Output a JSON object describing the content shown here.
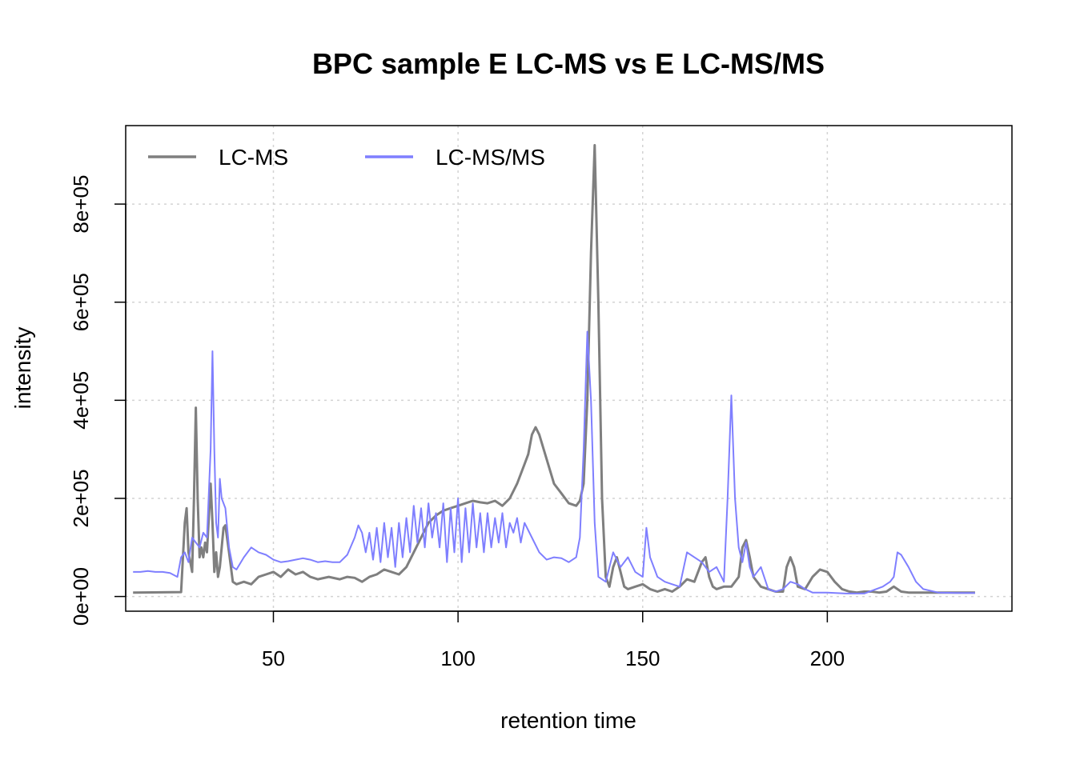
{
  "chart_data": {
    "type": "line",
    "title": "BPC sample E LC-MS vs E LC-MS/MS",
    "xlabel": "retention time",
    "ylabel": "intensity",
    "xlim": [
      10,
      250
    ],
    "ylim": [
      -30000,
      960000
    ],
    "x_ticks": [
      50,
      100,
      150,
      200
    ],
    "y_ticks": [
      0,
      200000,
      400000,
      600000,
      800000
    ],
    "x_tick_labels": [
      "50",
      "100",
      "150",
      "200"
    ],
    "y_tick_labels": [
      "0e+00",
      "2e+05",
      "4e+05",
      "6e+05",
      "8e+05"
    ],
    "grid": true,
    "legend_position": "top-left",
    "series": [
      {
        "name": "LC-MS",
        "color": "#7f7f7f",
        "points": [
          [
            12,
            8000
          ],
          [
            25,
            9000
          ],
          [
            26,
            150000
          ],
          [
            26.5,
            180000
          ],
          [
            27,
            90000
          ],
          [
            28,
            50000
          ],
          [
            28.5,
            200000
          ],
          [
            29,
            385000
          ],
          [
            29.5,
            200000
          ],
          [
            30,
            80000
          ],
          [
            30.5,
            100000
          ],
          [
            31,
            80000
          ],
          [
            31.5,
            110000
          ],
          [
            32,
            90000
          ],
          [
            32.5,
            160000
          ],
          [
            33,
            230000
          ],
          [
            33.5,
            150000
          ],
          [
            34,
            50000
          ],
          [
            34.5,
            90000
          ],
          [
            35,
            40000
          ],
          [
            35.5,
            60000
          ],
          [
            36,
            100000
          ],
          [
            36.5,
            140000
          ],
          [
            37,
            145000
          ],
          [
            38,
            90000
          ],
          [
            39,
            30000
          ],
          [
            40,
            25000
          ],
          [
            42,
            30000
          ],
          [
            44,
            25000
          ],
          [
            46,
            40000
          ],
          [
            48,
            45000
          ],
          [
            50,
            50000
          ],
          [
            52,
            40000
          ],
          [
            54,
            55000
          ],
          [
            56,
            45000
          ],
          [
            58,
            50000
          ],
          [
            60,
            40000
          ],
          [
            62,
            35000
          ],
          [
            65,
            40000
          ],
          [
            68,
            35000
          ],
          [
            70,
            40000
          ],
          [
            72,
            38000
          ],
          [
            74,
            30000
          ],
          [
            76,
            40000
          ],
          [
            78,
            45000
          ],
          [
            80,
            55000
          ],
          [
            82,
            50000
          ],
          [
            84,
            45000
          ],
          [
            86,
            60000
          ],
          [
            88,
            90000
          ],
          [
            90,
            120000
          ],
          [
            92,
            150000
          ],
          [
            94,
            165000
          ],
          [
            96,
            175000
          ],
          [
            98,
            180000
          ],
          [
            100,
            185000
          ],
          [
            102,
            190000
          ],
          [
            104,
            195000
          ],
          [
            106,
            192000
          ],
          [
            108,
            190000
          ],
          [
            110,
            195000
          ],
          [
            112,
            185000
          ],
          [
            114,
            200000
          ],
          [
            116,
            230000
          ],
          [
            118,
            270000
          ],
          [
            119,
            290000
          ],
          [
            120,
            330000
          ],
          [
            121,
            345000
          ],
          [
            122,
            330000
          ],
          [
            124,
            280000
          ],
          [
            126,
            230000
          ],
          [
            128,
            210000
          ],
          [
            130,
            190000
          ],
          [
            132,
            185000
          ],
          [
            133,
            195000
          ],
          [
            134,
            230000
          ],
          [
            135,
            400000
          ],
          [
            136,
            700000
          ],
          [
            137,
            920000
          ],
          [
            138,
            600000
          ],
          [
            139,
            200000
          ],
          [
            140,
            40000
          ],
          [
            141,
            20000
          ],
          [
            142,
            60000
          ],
          [
            143,
            80000
          ],
          [
            144,
            50000
          ],
          [
            145,
            20000
          ],
          [
            146,
            15000
          ],
          [
            148,
            20000
          ],
          [
            150,
            25000
          ],
          [
            152,
            15000
          ],
          [
            154,
            10000
          ],
          [
            156,
            15000
          ],
          [
            158,
            10000
          ],
          [
            160,
            20000
          ],
          [
            162,
            35000
          ],
          [
            164,
            30000
          ],
          [
            166,
            70000
          ],
          [
            167,
            80000
          ],
          [
            168,
            40000
          ],
          [
            169,
            20000
          ],
          [
            170,
            15000
          ],
          [
            172,
            20000
          ],
          [
            174,
            20000
          ],
          [
            176,
            40000
          ],
          [
            177,
            100000
          ],
          [
            178,
            115000
          ],
          [
            179,
            80000
          ],
          [
            180,
            40000
          ],
          [
            182,
            20000
          ],
          [
            184,
            15000
          ],
          [
            186,
            10000
          ],
          [
            188,
            10000
          ],
          [
            189,
            60000
          ],
          [
            190,
            80000
          ],
          [
            191,
            60000
          ],
          [
            192,
            20000
          ],
          [
            194,
            15000
          ],
          [
            196,
            40000
          ],
          [
            198,
            55000
          ],
          [
            200,
            50000
          ],
          [
            202,
            30000
          ],
          [
            204,
            15000
          ],
          [
            206,
            10000
          ],
          [
            208,
            8000
          ],
          [
            210,
            10000
          ],
          [
            212,
            10000
          ],
          [
            214,
            8000
          ],
          [
            216,
            10000
          ],
          [
            218,
            20000
          ],
          [
            220,
            10000
          ],
          [
            222,
            8000
          ],
          [
            225,
            8000
          ],
          [
            230,
            8000
          ],
          [
            235,
            8000
          ],
          [
            240,
            8000
          ]
        ]
      },
      {
        "name": "LC-MS/MS",
        "color": "#7f7fff",
        "points": [
          [
            12,
            50000
          ],
          [
            14,
            50000
          ],
          [
            16,
            52000
          ],
          [
            18,
            50000
          ],
          [
            20,
            50000
          ],
          [
            22,
            48000
          ],
          [
            24,
            40000
          ],
          [
            25,
            80000
          ],
          [
            26,
            90000
          ],
          [
            27,
            70000
          ],
          [
            28,
            120000
          ],
          [
            29,
            110000
          ],
          [
            30,
            100000
          ],
          [
            31,
            130000
          ],
          [
            32,
            120000
          ],
          [
            33,
            300000
          ],
          [
            33.5,
            500000
          ],
          [
            34,
            300000
          ],
          [
            34.5,
            150000
          ],
          [
            35,
            120000
          ],
          [
            35.5,
            240000
          ],
          [
            36,
            200000
          ],
          [
            37,
            180000
          ],
          [
            38,
            100000
          ],
          [
            39,
            60000
          ],
          [
            40,
            55000
          ],
          [
            42,
            80000
          ],
          [
            44,
            100000
          ],
          [
            46,
            90000
          ],
          [
            48,
            85000
          ],
          [
            50,
            75000
          ],
          [
            52,
            70000
          ],
          [
            54,
            72000
          ],
          [
            56,
            75000
          ],
          [
            58,
            78000
          ],
          [
            60,
            75000
          ],
          [
            62,
            70000
          ],
          [
            64,
            72000
          ],
          [
            66,
            70000
          ],
          [
            68,
            70000
          ],
          [
            70,
            85000
          ],
          [
            72,
            120000
          ],
          [
            73,
            145000
          ],
          [
            74,
            130000
          ],
          [
            75,
            90000
          ],
          [
            76,
            130000
          ],
          [
            77,
            75000
          ],
          [
            78,
            140000
          ],
          [
            79,
            70000
          ],
          [
            80,
            150000
          ],
          [
            81,
            80000
          ],
          [
            82,
            140000
          ],
          [
            83,
            60000
          ],
          [
            84,
            150000
          ],
          [
            85,
            80000
          ],
          [
            86,
            160000
          ],
          [
            87,
            90000
          ],
          [
            88,
            185000
          ],
          [
            89,
            110000
          ],
          [
            90,
            180000
          ],
          [
            91,
            100000
          ],
          [
            92,
            190000
          ],
          [
            93,
            120000
          ],
          [
            94,
            170000
          ],
          [
            95,
            100000
          ],
          [
            96,
            190000
          ],
          [
            97,
            70000
          ],
          [
            98,
            180000
          ],
          [
            99,
            90000
          ],
          [
            100,
            200000
          ],
          [
            101,
            70000
          ],
          [
            102,
            180000
          ],
          [
            103,
            90000
          ],
          [
            104,
            190000
          ],
          [
            105,
            100000
          ],
          [
            106,
            170000
          ],
          [
            107,
            90000
          ],
          [
            108,
            170000
          ],
          [
            109,
            100000
          ],
          [
            110,
            160000
          ],
          [
            111,
            110000
          ],
          [
            112,
            170000
          ],
          [
            113,
            100000
          ],
          [
            114,
            150000
          ],
          [
            115,
            130000
          ],
          [
            116,
            160000
          ],
          [
            117,
            110000
          ],
          [
            118,
            150000
          ],
          [
            120,
            120000
          ],
          [
            122,
            90000
          ],
          [
            124,
            75000
          ],
          [
            126,
            80000
          ],
          [
            128,
            78000
          ],
          [
            130,
            70000
          ],
          [
            132,
            80000
          ],
          [
            133,
            120000
          ],
          [
            134,
            300000
          ],
          [
            135,
            540000
          ],
          [
            136,
            400000
          ],
          [
            137,
            150000
          ],
          [
            138,
            40000
          ],
          [
            140,
            30000
          ],
          [
            142,
            90000
          ],
          [
            144,
            60000
          ],
          [
            146,
            80000
          ],
          [
            148,
            50000
          ],
          [
            150,
            40000
          ],
          [
            151,
            140000
          ],
          [
            152,
            80000
          ],
          [
            154,
            40000
          ],
          [
            156,
            30000
          ],
          [
            158,
            25000
          ],
          [
            160,
            20000
          ],
          [
            162,
            90000
          ],
          [
            164,
            80000
          ],
          [
            166,
            70000
          ],
          [
            168,
            50000
          ],
          [
            170,
            60000
          ],
          [
            172,
            30000
          ],
          [
            173,
            200000
          ],
          [
            174,
            410000
          ],
          [
            175,
            200000
          ],
          [
            176,
            100000
          ],
          [
            177,
            70000
          ],
          [
            178,
            110000
          ],
          [
            179,
            60000
          ],
          [
            180,
            40000
          ],
          [
            182,
            60000
          ],
          [
            184,
            15000
          ],
          [
            186,
            10000
          ],
          [
            188,
            15000
          ],
          [
            190,
            30000
          ],
          [
            192,
            25000
          ],
          [
            194,
            15000
          ],
          [
            196,
            8000
          ],
          [
            198,
            8000
          ],
          [
            200,
            8000
          ],
          [
            205,
            6000
          ],
          [
            210,
            6000
          ],
          [
            215,
            20000
          ],
          [
            217,
            30000
          ],
          [
            218,
            40000
          ],
          [
            219,
            90000
          ],
          [
            220,
            85000
          ],
          [
            222,
            60000
          ],
          [
            224,
            30000
          ],
          [
            226,
            15000
          ],
          [
            230,
            8000
          ],
          [
            235,
            7000
          ],
          [
            240,
            7000
          ]
        ]
      }
    ]
  }
}
